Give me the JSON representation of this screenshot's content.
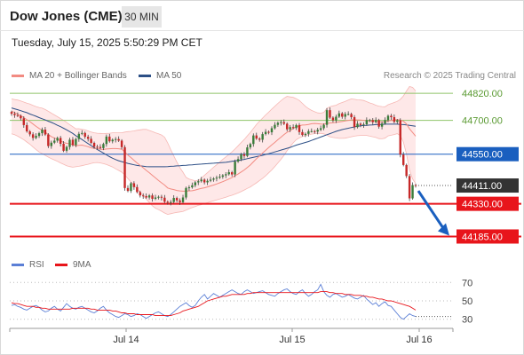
{
  "header": {
    "title": "Dow Jones (CME)",
    "timeframe": "30 MIN",
    "datetime": "Tuesday, July 15, 2025 5:50:29 PM CET"
  },
  "legend": {
    "ma20_label": "MA 20 + Bollinger Bands",
    "ma50_label": "MA 50",
    "copyright": "Research © 2025 Trading Central",
    "rsi_label": "RSI",
    "ma9_label": "9MA"
  },
  "colors": {
    "ma20": "#f28b82",
    "band_fill": "#fde0e0",
    "ma50": "#2c4f86",
    "resistance": "#8fc46a",
    "pivot": "#1a5fbf",
    "support": "#e8151b",
    "current": "#333333",
    "rsi": "#5b7fd6",
    "rsi_ma": "#e8151b",
    "bull": "#3a7d3a",
    "bear": "#c62828",
    "arrow": "#1a5fbf"
  },
  "chart_data": [
    {
      "type": "candlestick",
      "x_ticks": [
        "Jul 14",
        "Jul 15",
        "Jul 16"
      ],
      "y_range": [
        44120,
        44840
      ],
      "levels": [
        {
          "label": "44820.00",
          "value": 44820,
          "kind": "resistance"
        },
        {
          "label": "44700.00",
          "value": 44700,
          "kind": "resistance"
        },
        {
          "label": "44550.00",
          "value": 44550,
          "kind": "pivot"
        },
        {
          "label": "44411.00",
          "value": 44411,
          "kind": "current"
        },
        {
          "label": "44330.00",
          "value": 44330,
          "kind": "support"
        },
        {
          "label": "44185.00",
          "value": 44185,
          "kind": "support"
        }
      ],
      "close": [
        44729,
        44723,
        44720,
        44709,
        44679,
        44651,
        44638,
        44622,
        44631,
        44643,
        44659,
        44637,
        44586,
        44601,
        44610,
        44622,
        44596,
        44565,
        44582,
        44614,
        44590,
        44617,
        44640,
        44644,
        44627,
        44618,
        44600,
        44583,
        44582,
        44577,
        44595,
        44628,
        44607,
        44614,
        44617,
        44610,
        44581,
        44400,
        44387,
        44421,
        44404,
        44382,
        44367,
        44364,
        44358,
        44367,
        44352,
        44358,
        44361,
        44357,
        44339,
        44335,
        44338,
        44356,
        44345,
        44337,
        44358,
        44400,
        44403,
        44412,
        44425,
        44430,
        44437,
        44425,
        44432,
        44437,
        44442,
        44446,
        44450,
        44456,
        44461,
        44470,
        44460,
        44517,
        44528,
        44550,
        44542,
        44580,
        44595,
        44633,
        44619,
        44614,
        44639,
        44649,
        44647,
        44665,
        44680,
        44689,
        44692,
        44685,
        44660,
        44670,
        44666,
        44679,
        44648,
        44635,
        44640,
        44652,
        44652,
        44650,
        44658,
        44665,
        44680,
        44745,
        44712,
        44700,
        44716,
        44731,
        44716,
        44728,
        44728,
        44714,
        44670,
        44685,
        44679,
        44682,
        44701,
        44701,
        44692,
        44701,
        44672,
        44686,
        44701,
        44720,
        44714,
        44693,
        44700,
        44548,
        44502,
        44453,
        44354,
        44413,
        44411
      ],
      "ma20": [
        44740,
        44735,
        44727,
        44720,
        44712,
        44703,
        44694,
        44684,
        44673,
        44664,
        44656,
        44648,
        44637,
        44628,
        44622,
        44615,
        44609,
        44602,
        44598,
        44596,
        44593,
        44587,
        44589,
        44590,
        44587,
        44583,
        44578,
        44576,
        44575,
        44572,
        44571,
        44573,
        44574,
        44575,
        44575,
        44574,
        44572,
        44560,
        44546,
        44535,
        44523,
        44511,
        44500,
        44490,
        44478,
        44468,
        44456,
        44445,
        44433,
        44423,
        44413,
        44400,
        44396,
        44393,
        44389,
        44387,
        44386,
        44386,
        44387,
        44388,
        44391,
        44395,
        44398,
        44401,
        44405,
        44409,
        44413,
        44418,
        44423,
        44428,
        44434,
        44440,
        44446,
        44454,
        44462,
        44471,
        44480,
        44491,
        44502,
        44516,
        44530,
        44542,
        44555,
        44567,
        44579,
        44591,
        44602,
        44614,
        44625,
        44637,
        44647,
        44654,
        44664,
        44671,
        44676,
        44679,
        44680,
        44682,
        44685,
        44686,
        44685,
        44684,
        44683,
        44686,
        44688,
        44689,
        44691,
        44693,
        44695,
        44697,
        44700,
        44702,
        44702,
        44702,
        44701,
        44700,
        44698,
        44697,
        44697,
        44695,
        44694,
        44693,
        44694,
        44697,
        44699,
        44701,
        44703,
        44701,
        44696,
        44684,
        44662,
        44646,
        44630
      ],
      "bb_upper": [
        44795,
        44792,
        44790,
        44786,
        44781,
        44776,
        44772,
        44766,
        44761,
        44757,
        44754,
        44748,
        44740,
        44732,
        44724,
        44716,
        44708,
        44700,
        44691,
        44681,
        44672,
        44662,
        44663,
        44660,
        44658,
        44653,
        44648,
        44645,
        44643,
        44642,
        44641,
        44642,
        44643,
        44645,
        44645,
        44645,
        44645,
        44648,
        44650,
        44651,
        44653,
        44656,
        44658,
        44660,
        44660,
        44655,
        44650,
        44645,
        44640,
        44635,
        44625,
        44600,
        44570,
        44542,
        44515,
        44490,
        44470,
        44447,
        44440,
        44436,
        44432,
        44433,
        44444,
        44456,
        44468,
        44480,
        44492,
        44503,
        44515,
        44527,
        44538,
        44549,
        44560,
        44573,
        44587,
        44601,
        44615,
        44631,
        44646,
        44664,
        44682,
        44696,
        44710,
        44724,
        44736,
        44750,
        44762,
        44775,
        44787,
        44798,
        44806,
        44804,
        44802,
        44796,
        44788,
        44775,
        44762,
        44752,
        44744,
        44738,
        44733,
        44732,
        44735,
        44753,
        44760,
        44764,
        44767,
        44774,
        44779,
        44784,
        44790,
        44795,
        44793,
        44791,
        44790,
        44788,
        44783,
        44777,
        44773,
        44767,
        44763,
        44761,
        44760,
        44769,
        44774,
        44779,
        44784,
        44793,
        44808,
        44830,
        44850,
        44846,
        44830
      ],
      "bb_lower": [
        44640,
        44636,
        44630,
        44622,
        44614,
        44604,
        44594,
        44582,
        44570,
        44560,
        44552,
        44545,
        44537,
        44530,
        44524,
        44518,
        44511,
        44505,
        44499,
        44495,
        44492,
        44494,
        44496,
        44499,
        44502,
        44505,
        44509,
        44512,
        44513,
        44511,
        44508,
        44504,
        44499,
        44493,
        44485,
        44478,
        44470,
        44458,
        44442,
        44427,
        44412,
        44396,
        44381,
        44366,
        44351,
        44336,
        44321,
        44311,
        44304,
        44297,
        44289,
        44283,
        44286,
        44289,
        44292,
        44294,
        44296,
        44302,
        44308,
        44313,
        44318,
        44323,
        44326,
        44331,
        44335,
        44339,
        44343,
        44347,
        44351,
        44355,
        44359,
        44364,
        44368,
        44373,
        44378,
        44384,
        44391,
        44398,
        44405,
        44414,
        44423,
        44433,
        44443,
        44454,
        44467,
        44480,
        44495,
        44511,
        44527,
        44545,
        44565,
        44583,
        44600,
        44614,
        44622,
        44628,
        44632,
        44636,
        44639,
        44641,
        44642,
        44642,
        44640,
        44634,
        44627,
        44624,
        44622,
        44620,
        44620,
        44621,
        44624,
        44627,
        44630,
        44632,
        44633,
        44633,
        44633,
        44630,
        44627,
        44624,
        44619,
        44618,
        44621,
        44631,
        44634,
        44637,
        44641,
        44632,
        44604,
        44550,
        44480,
        44440,
        44420
      ],
      "ma50": [
        44755,
        44751,
        44747,
        44743,
        44738,
        44734,
        44728,
        44723,
        44718,
        44712,
        44707,
        44702,
        44696,
        44691,
        44685,
        44678,
        44672,
        44665,
        44658,
        44650,
        44642,
        44632,
        44624,
        44615,
        44606,
        44597,
        44588,
        44579,
        44571,
        44563,
        44555,
        44547,
        44539,
        44532,
        44526,
        44521,
        44517,
        44513,
        44509,
        44506,
        44503,
        44500,
        44498,
        44497,
        44495,
        44494,
        44494,
        44494,
        44494,
        44494,
        44494,
        44495,
        44496,
        44497,
        44498,
        44499,
        44500,
        44501,
        44502,
        44503,
        44504,
        44505,
        44506,
        44507,
        44508,
        44509,
        44510,
        44511,
        44512,
        44513,
        44514,
        44516,
        44518,
        44520,
        44522,
        44524,
        44527,
        44530,
        44533,
        44536,
        44539,
        44542,
        44545,
        44549,
        44552,
        44556,
        44560,
        44564,
        44568,
        44572,
        44576,
        44580,
        44585,
        44590,
        44594,
        44598,
        44602,
        44606,
        44611,
        44616,
        44621,
        44626,
        44631,
        44636,
        44641,
        44646,
        44651,
        44655,
        44659,
        44662,
        44665,
        44668,
        44671,
        44674,
        44676,
        44677,
        44678,
        44679,
        44680,
        44681,
        44682,
        44682,
        44683,
        44683,
        44683,
        44683,
        44683,
        44682,
        44681,
        44680,
        44678,
        44676,
        44674
      ]
    },
    {
      "type": "line",
      "title": "RSI",
      "y_ticks": [
        70,
        50,
        30
      ],
      "y_range": [
        22,
        78
      ],
      "series": [
        {
          "name": "RSI",
          "values": [
            45,
            46,
            44,
            43,
            41,
            40,
            42,
            44,
            45,
            43,
            40,
            38,
            39,
            42,
            44,
            41,
            39,
            43,
            47,
            44,
            42,
            41,
            43,
            44,
            42,
            40,
            38,
            37,
            39,
            42,
            44,
            40,
            37,
            35,
            33,
            32,
            34,
            36,
            35,
            33,
            34,
            36,
            35,
            33,
            31,
            33,
            35,
            37,
            38,
            36,
            34,
            33,
            35,
            38,
            41,
            44,
            46,
            48,
            45,
            43,
            45,
            50,
            54,
            57,
            52,
            55,
            58,
            56,
            54,
            56,
            58,
            60,
            62,
            60,
            58,
            57,
            60,
            62,
            60,
            58,
            59,
            60,
            61,
            59,
            57,
            56,
            55,
            58,
            60,
            62,
            63,
            60,
            58,
            57,
            60,
            62,
            58,
            55,
            57,
            60,
            62,
            68,
            60,
            56,
            54,
            57,
            58,
            56,
            54,
            55,
            57,
            55,
            53,
            52,
            54,
            56,
            52,
            49,
            46,
            48,
            44,
            47,
            49,
            45,
            44,
            40,
            36,
            32,
            30,
            33,
            36,
            34,
            33
          ]
        },
        {
          "name": "9MA",
          "values": [
            48,
            47,
            47,
            46,
            45,
            44,
            44,
            44,
            43,
            43,
            42,
            42,
            41,
            41,
            41,
            41,
            41,
            41,
            41,
            41,
            42,
            42,
            42,
            42,
            42,
            42,
            41,
            41,
            40,
            40,
            40,
            40,
            40,
            39,
            39,
            38,
            37,
            37,
            36,
            36,
            36,
            35,
            35,
            35,
            35,
            35,
            35,
            34,
            34,
            34,
            34,
            34,
            34,
            35,
            36,
            37,
            39,
            40,
            41,
            42,
            43,
            44,
            46,
            48,
            50,
            51,
            52,
            53,
            54,
            55,
            55,
            56,
            57,
            57,
            57,
            57,
            57,
            58,
            58,
            59,
            59,
            59,
            59,
            59,
            59,
            59,
            59,
            59,
            59,
            59,
            59,
            59,
            59,
            59,
            59,
            59,
            59,
            59,
            59,
            59,
            59,
            60,
            60,
            60,
            59,
            59,
            58,
            58,
            58,
            57,
            57,
            57,
            56,
            56,
            56,
            55,
            55,
            54,
            54,
            53,
            52,
            52,
            51,
            50,
            50,
            49,
            48,
            47,
            46,
            45,
            44,
            42,
            40
          ]
        }
      ]
    }
  ]
}
